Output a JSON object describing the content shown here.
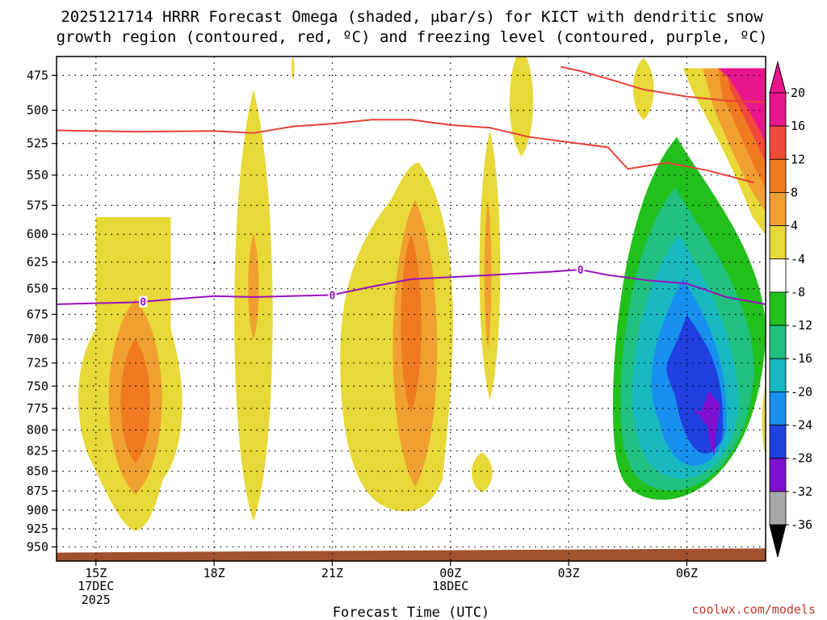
{
  "chart_data": {
    "type": "time-height contour (omega)",
    "title_line1": "2025121714 HRRR Forecast Omega (shaded, μbar/s) for KICT with dendritic snow",
    "title_line2": "growth region (contoured, red, ºC) and freezing level (contoured, purple, ºC)",
    "xlabel": "Forecast Time (UTC)",
    "credit": "coolwx.com/models",
    "x_ticks": [
      {
        "label": "15Z",
        "hour": 15,
        "sub1": "17DEC",
        "sub2": "2025"
      },
      {
        "label": "18Z",
        "hour": 18,
        "sub1": "",
        "sub2": ""
      },
      {
        "label": "21Z",
        "hour": 21,
        "sub1": "",
        "sub2": ""
      },
      {
        "label": "00Z",
        "hour": 24,
        "sub1": "18DEC",
        "sub2": ""
      },
      {
        "label": "03Z",
        "hour": 27,
        "sub1": "",
        "sub2": ""
      },
      {
        "label": "06Z",
        "hour": 30,
        "sub1": "",
        "sub2": ""
      }
    ],
    "xlim_hours": [
      14,
      32
    ],
    "y_ticks_mb": [
      "475",
      "500",
      "525",
      "550",
      "575",
      "600",
      "625",
      "650",
      "675",
      "700",
      "725",
      "750",
      "775",
      "800",
      "825",
      "850",
      "875",
      "900",
      "925",
      "950"
    ],
    "colorbar": {
      "labels": [
        "20",
        "16",
        "12",
        "8",
        "4",
        "-4",
        "-8",
        "-12",
        "-16",
        "-20",
        "-24",
        "-28",
        "-32",
        "-36"
      ],
      "colors": [
        "#e8168c",
        "#f04a3a",
        "#f07a20",
        "#f0a030",
        "#e8d838",
        "#ffffff",
        "#22c01c",
        "#20c080",
        "#18b8c0",
        "#1890f0",
        "#2040e0",
        "#8010d0",
        "#a8a8a8"
      ],
      "top_arrow_color": "#e8168c",
      "bottom_arrow_color": "#000000"
    },
    "freezing_level": {
      "value_label": "0",
      "color": "#9910c0",
      "points": [
        [
          14,
          665
        ],
        [
          16,
          663
        ],
        [
          18,
          657
        ],
        [
          19,
          658
        ],
        [
          21,
          656
        ],
        [
          22,
          648
        ],
        [
          23,
          641
        ],
        [
          25,
          637
        ],
        [
          26.5,
          634
        ],
        [
          27.3,
          632
        ],
        [
          28,
          637
        ],
        [
          29,
          642
        ],
        [
          30,
          645
        ],
        [
          31,
          658
        ],
        [
          32,
          665
        ]
      ],
      "label_hours": [
        16.2,
        21,
        27.3
      ]
    },
    "dgz_contours": {
      "color": "#e8403a",
      "upper": [
        [
          14,
          515
        ],
        [
          16,
          516
        ],
        [
          18,
          515.5
        ],
        [
          19,
          517
        ],
        [
          20,
          512
        ],
        [
          21,
          510
        ],
        [
          22,
          507
        ],
        [
          23,
          507
        ],
        [
          24,
          511
        ],
        [
          25,
          513
        ],
        [
          26,
          520
        ],
        [
          27,
          524
        ],
        [
          28,
          528
        ],
        [
          28.5,
          545
        ],
        [
          29.5,
          540
        ],
        [
          30.5,
          546
        ],
        [
          31.7,
          556
        ]
      ],
      "lower": [
        [
          26.8,
          469
        ],
        [
          27.3,
          472
        ],
        [
          28.2,
          479
        ],
        [
          28.9,
          485
        ],
        [
          30,
          490
        ],
        [
          31,
          493
        ],
        [
          32,
          494
        ]
      ]
    },
    "omega_regions": [
      {
        "label": "ascent 15-17Z",
        "levels": [
          4,
          8,
          12
        ]
      },
      {
        "label": "ascent 18-19Z",
        "levels": [
          4,
          8
        ]
      },
      {
        "label": "ascent 21-23Z",
        "levels": [
          4,
          8,
          12
        ]
      },
      {
        "label": "ascent 01Z",
        "levels": [
          4,
          8
        ]
      },
      {
        "label": "descent 04-07Z",
        "levels": [
          -4,
          -8,
          -12,
          -16,
          -20,
          -24,
          -28
        ]
      },
      {
        "label": "ascent upper 07Z",
        "levels": [
          4,
          8,
          12,
          16,
          20
        ]
      }
    ],
    "terrain_color": "#a0522d"
  }
}
